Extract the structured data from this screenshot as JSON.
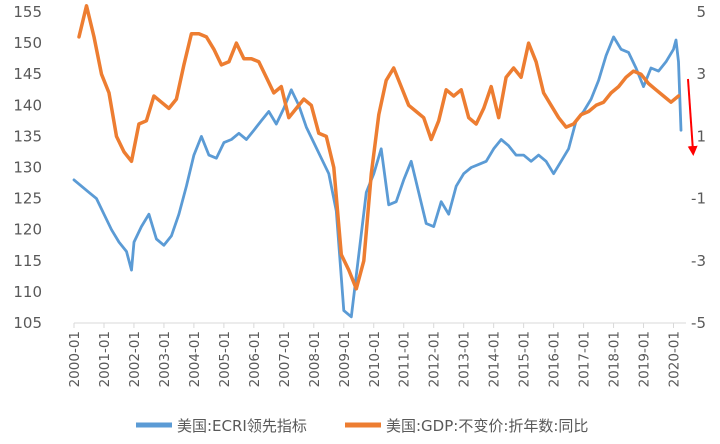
{
  "chart_data": {
    "type": "line",
    "title": "",
    "xlabel": "",
    "x_ticks": [
      "2000-01",
      "2001-01",
      "2002-01",
      "2003-01",
      "2004-01",
      "2005-01",
      "2006-01",
      "2007-01",
      "2008-01",
      "2009-01",
      "2010-01",
      "2011-01",
      "2012-01",
      "2013-01",
      "2014-01",
      "2015-01",
      "2016-01",
      "2017-01",
      "2018-01",
      "2019-01",
      "2020-01"
    ],
    "x_range": [
      "2000-01",
      "2020-06"
    ],
    "y_left": {
      "lim": [
        105,
        155
      ],
      "ticks": [
        "105",
        "110",
        "115",
        "120",
        "125",
        "130",
        "135",
        "140",
        "145",
        "150",
        "155"
      ]
    },
    "y_right": {
      "lim": [
        -5,
        5
      ],
      "ticks": [
        "-5",
        "-3",
        "-1",
        "1",
        "3",
        "5"
      ]
    },
    "grid": false,
    "legend_position": "bottom",
    "annotation": "red down arrow at right end",
    "series": [
      {
        "name": "美国:ECRI领先指标",
        "axis": "left",
        "color": "#5b9bd5",
        "points": [
          [
            "2000-01",
            128.0
          ],
          [
            "2000-04",
            127.0
          ],
          [
            "2000-07",
            126.0
          ],
          [
            "2000-10",
            125.0
          ],
          [
            "2001-01",
            122.5
          ],
          [
            "2001-04",
            120.0
          ],
          [
            "2001-07",
            118.0
          ],
          [
            "2001-10",
            116.5
          ],
          [
            "2001-12",
            113.5
          ],
          [
            "2002-01",
            118.0
          ],
          [
            "2002-04",
            120.5
          ],
          [
            "2002-07",
            122.5
          ],
          [
            "2002-10",
            118.5
          ],
          [
            "2003-01",
            117.5
          ],
          [
            "2003-04",
            119.0
          ],
          [
            "2003-07",
            122.5
          ],
          [
            "2003-10",
            127.0
          ],
          [
            "2004-01",
            132.0
          ],
          [
            "2004-04",
            135.0
          ],
          [
            "2004-07",
            132.0
          ],
          [
            "2004-10",
            131.5
          ],
          [
            "2005-01",
            134.0
          ],
          [
            "2005-04",
            134.5
          ],
          [
            "2005-07",
            135.5
          ],
          [
            "2005-10",
            134.5
          ],
          [
            "2006-01",
            136.0
          ],
          [
            "2006-04",
            137.5
          ],
          [
            "2006-07",
            139.0
          ],
          [
            "2006-10",
            137.0
          ],
          [
            "2007-01",
            139.5
          ],
          [
            "2007-04",
            142.5
          ],
          [
            "2007-07",
            140.0
          ],
          [
            "2007-10",
            136.5
          ],
          [
            "2008-01",
            134.0
          ],
          [
            "2008-04",
            131.5
          ],
          [
            "2008-07",
            129.0
          ],
          [
            "2008-10",
            123.0
          ],
          [
            "2009-01",
            107.0
          ],
          [
            "2009-04",
            106.0
          ],
          [
            "2009-07",
            116.0
          ],
          [
            "2009-10",
            126.0
          ],
          [
            "2010-01",
            129.0
          ],
          [
            "2010-04",
            133.0
          ],
          [
            "2010-07",
            124.0
          ],
          [
            "2010-10",
            124.5
          ],
          [
            "2011-01",
            128.0
          ],
          [
            "2011-04",
            131.0
          ],
          [
            "2011-07",
            126.0
          ],
          [
            "2011-10",
            121.0
          ],
          [
            "2012-01",
            120.5
          ],
          [
            "2012-04",
            124.5
          ],
          [
            "2012-07",
            122.5
          ],
          [
            "2012-10",
            127.0
          ],
          [
            "2013-01",
            129.0
          ],
          [
            "2013-04",
            130.0
          ],
          [
            "2013-07",
            130.5
          ],
          [
            "2013-10",
            131.0
          ],
          [
            "2014-01",
            133.0
          ],
          [
            "2014-04",
            134.5
          ],
          [
            "2014-07",
            133.5
          ],
          [
            "2014-10",
            132.0
          ],
          [
            "2015-01",
            132.0
          ],
          [
            "2015-04",
            131.0
          ],
          [
            "2015-07",
            132.0
          ],
          [
            "2015-10",
            131.0
          ],
          [
            "2016-01",
            129.0
          ],
          [
            "2016-04",
            131.0
          ],
          [
            "2016-07",
            133.0
          ],
          [
            "2016-10",
            137.5
          ],
          [
            "2017-01",
            139.0
          ],
          [
            "2017-04",
            141.0
          ],
          [
            "2017-07",
            144.0
          ],
          [
            "2017-10",
            148.0
          ],
          [
            "2018-01",
            151.0
          ],
          [
            "2018-04",
            149.0
          ],
          [
            "2018-07",
            148.5
          ],
          [
            "2018-10",
            146.0
          ],
          [
            "2019-01",
            143.0
          ],
          [
            "2019-04",
            146.0
          ],
          [
            "2019-07",
            145.5
          ],
          [
            "2019-10",
            147.0
          ],
          [
            "2020-01",
            149.0
          ],
          [
            "2020-02",
            150.5
          ],
          [
            "2020-03",
            147.0
          ],
          [
            "2020-04",
            136.0
          ]
        ]
      },
      {
        "name": "美国:GDP:不变价:折年数:同比",
        "axis": "right",
        "color": "#ed7d31",
        "points": [
          [
            "2000-03",
            4.2
          ],
          [
            "2000-06",
            5.2
          ],
          [
            "2000-09",
            4.2
          ],
          [
            "2000-12",
            3.0
          ],
          [
            "2001-03",
            2.4
          ],
          [
            "2001-06",
            1.0
          ],
          [
            "2001-09",
            0.5
          ],
          [
            "2001-12",
            0.2
          ],
          [
            "2002-03",
            1.4
          ],
          [
            "2002-06",
            1.5
          ],
          [
            "2002-09",
            2.3
          ],
          [
            "2002-12",
            2.1
          ],
          [
            "2003-03",
            1.9
          ],
          [
            "2003-06",
            2.2
          ],
          [
            "2003-09",
            3.3
          ],
          [
            "2003-12",
            4.3
          ],
          [
            "2004-03",
            4.3
          ],
          [
            "2004-06",
            4.2
          ],
          [
            "2004-09",
            3.8
          ],
          [
            "2004-12",
            3.3
          ],
          [
            "2005-03",
            3.4
          ],
          [
            "2005-06",
            4.0
          ],
          [
            "2005-09",
            3.5
          ],
          [
            "2005-12",
            3.5
          ],
          [
            "2006-03",
            3.4
          ],
          [
            "2006-06",
            2.9
          ],
          [
            "2006-09",
            2.4
          ],
          [
            "2006-12",
            2.6
          ],
          [
            "2007-03",
            1.6
          ],
          [
            "2007-06",
            1.9
          ],
          [
            "2007-09",
            2.2
          ],
          [
            "2007-12",
            2.0
          ],
          [
            "2008-03",
            1.1
          ],
          [
            "2008-06",
            1.0
          ],
          [
            "2008-09",
            0.0
          ],
          [
            "2008-12",
            -2.8
          ],
          [
            "2009-03",
            -3.3
          ],
          [
            "2009-06",
            -3.9
          ],
          [
            "2009-09",
            -3.0
          ],
          [
            "2009-12",
            -0.2
          ],
          [
            "2010-03",
            1.7
          ],
          [
            "2010-06",
            2.8
          ],
          [
            "2010-09",
            3.2
          ],
          [
            "2010-12",
            2.6
          ],
          [
            "2011-03",
            2.0
          ],
          [
            "2011-06",
            1.8
          ],
          [
            "2011-09",
            1.6
          ],
          [
            "2011-12",
            0.9
          ],
          [
            "2012-03",
            1.5
          ],
          [
            "2012-06",
            2.5
          ],
          [
            "2012-09",
            2.3
          ],
          [
            "2012-12",
            2.5
          ],
          [
            "2013-03",
            1.6
          ],
          [
            "2013-06",
            1.4
          ],
          [
            "2013-09",
            1.9
          ],
          [
            "2013-12",
            2.6
          ],
          [
            "2014-03",
            1.6
          ],
          [
            "2014-06",
            2.9
          ],
          [
            "2014-09",
            3.2
          ],
          [
            "2014-12",
            2.9
          ],
          [
            "2015-03",
            4.0
          ],
          [
            "2015-06",
            3.4
          ],
          [
            "2015-09",
            2.4
          ],
          [
            "2015-12",
            2.0
          ],
          [
            "2016-03",
            1.6
          ],
          [
            "2016-06",
            1.3
          ],
          [
            "2016-09",
            1.4
          ],
          [
            "2016-12",
            1.7
          ],
          [
            "2017-03",
            1.8
          ],
          [
            "2017-06",
            2.0
          ],
          [
            "2017-09",
            2.1
          ],
          [
            "2017-12",
            2.4
          ],
          [
            "2018-03",
            2.6
          ],
          [
            "2018-06",
            2.9
          ],
          [
            "2018-09",
            3.1
          ],
          [
            "2018-12",
            3.0
          ],
          [
            "2019-03",
            2.7
          ],
          [
            "2019-06",
            2.5
          ],
          [
            "2019-09",
            2.3
          ],
          [
            "2019-12",
            2.1
          ],
          [
            "2020-03",
            2.3
          ]
        ]
      }
    ]
  }
}
